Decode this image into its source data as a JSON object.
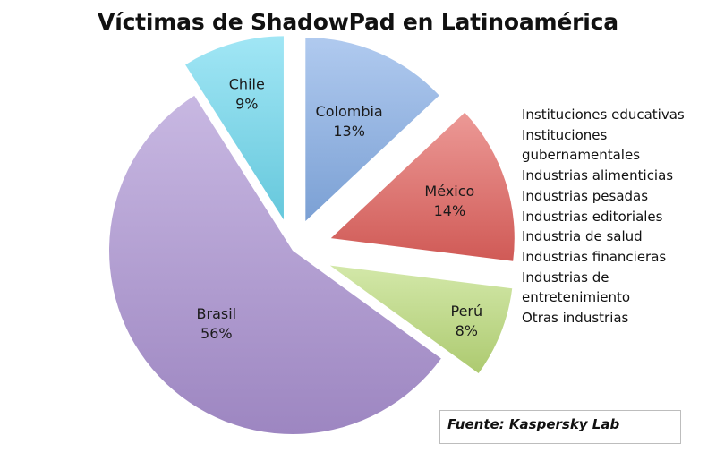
{
  "chart_data": {
    "type": "pie",
    "title": "Víctimas de ShadowPad en Latinoamérica",
    "slices": [
      {
        "label": "Colombia",
        "value": 13,
        "value_label": "13%",
        "color": "#86aee6"
      },
      {
        "label": "México",
        "value": 14,
        "value_label": "14%",
        "color": "#e2625d"
      },
      {
        "label": "Perú",
        "value": 8,
        "value_label": "8%",
        "color": "#bcdc7a"
      },
      {
        "label": "Brasil",
        "value": 56,
        "value_label": "56%",
        "color": "#ab92d2"
      },
      {
        "label": "Chile",
        "value": 9,
        "value_label": "9%",
        "color": "#6fd9ef"
      }
    ],
    "exploded": true
  },
  "sectors": [
    "Instituciones educativas",
    "Instituciones",
    "gubernamentales",
    "Industrias alimenticias",
    "Industrias pesadas",
    "Industrias editoriales",
    "Industria de salud",
    "Industrias financieras",
    "Industrias de",
    "entretenimiento",
    "Otras industrias"
  ],
  "source": "Fuente: Kaspersky Lab"
}
